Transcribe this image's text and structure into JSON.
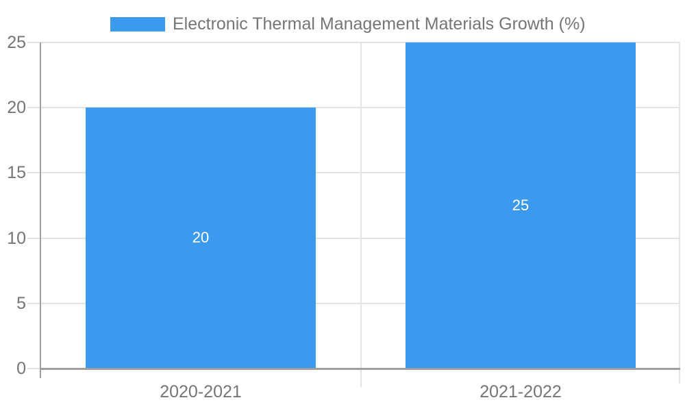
{
  "chart_data": {
    "type": "bar",
    "title": "",
    "legend": "Electronic Thermal Management Materials Growth (%)",
    "legend_position": "top",
    "categories": [
      "2020-2021",
      "2021-2022"
    ],
    "values": [
      20,
      25
    ],
    "bar_labels": [
      "20",
      "25"
    ],
    "xlabel": "",
    "ylabel": "",
    "ylim": [
      0,
      25
    ],
    "yticks": [
      0,
      5,
      10,
      15,
      20,
      25
    ],
    "grid": true,
    "bar_color": "#3B99EE",
    "bar_label_color": "#FFFFFF",
    "axis_text_color": "#757575",
    "gridline_color": "#E3E3E3",
    "axis_line_color": "#9E9E9E"
  }
}
